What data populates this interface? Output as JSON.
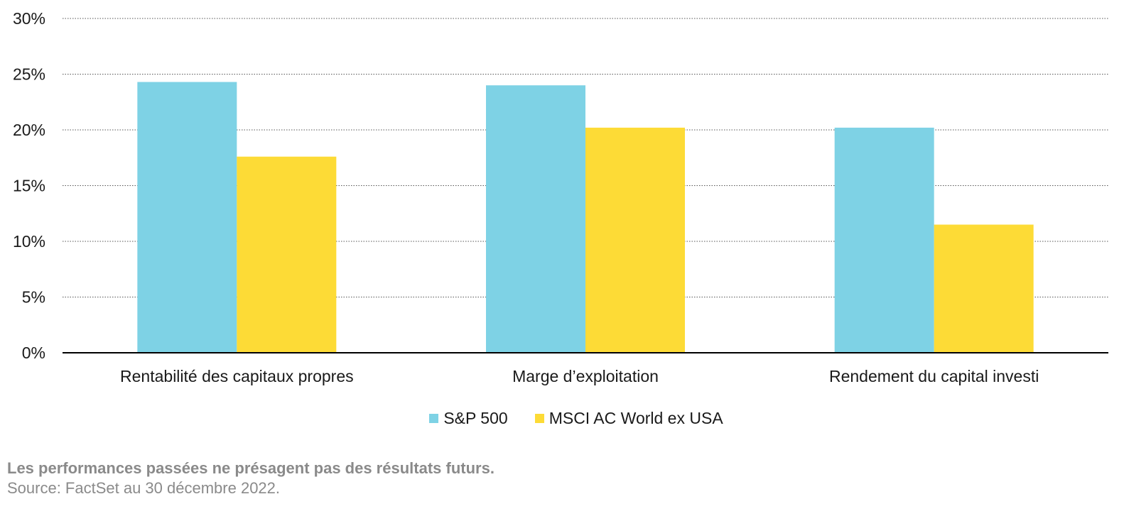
{
  "chart_data": {
    "type": "bar",
    "categories": [
      "Rentabilité des capitaux propres",
      "Marge d’exploitation",
      "Rendement du capital investi"
    ],
    "series": [
      {
        "name": "S&P 500",
        "values": [
          24.3,
          24.0,
          20.2
        ],
        "color": "#7ed2e5"
      },
      {
        "name": "MSCI AC World ex USA",
        "values": [
          17.6,
          20.2,
          11.5
        ],
        "color": "#fddb36"
      }
    ],
    "ylim": [
      0,
      30
    ],
    "yticks": [
      0,
      5,
      10,
      15,
      20,
      25,
      30
    ],
    "ytick_labels": [
      "0%",
      "5%",
      "10%",
      "15%",
      "20%",
      "25%",
      "30%"
    ],
    "grid": true,
    "legend_position": "bottom"
  },
  "footer": {
    "disclaimer": "Les performances passées ne présagent pas des résultats futurs.",
    "source": "Source: FactSet au 30 décembre 2022."
  }
}
